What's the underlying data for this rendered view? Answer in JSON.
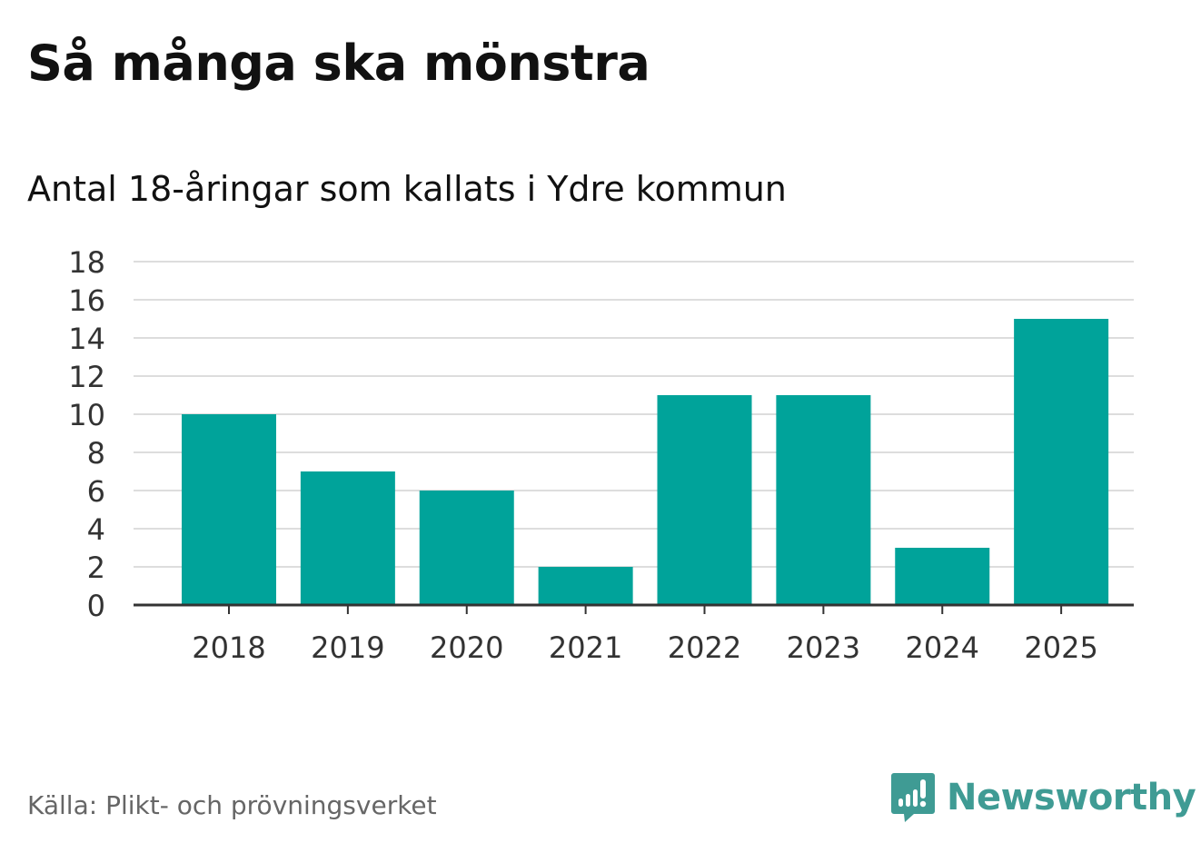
{
  "header": {
    "title": "Så många ska mönstra",
    "subtitle": "Antal 18-åringar som kallats i Ydre kommun"
  },
  "footer": {
    "source": "Källa: Plikt- och prövningsverket",
    "brand": "Newsworthy",
    "brand_icon": "newsworthy-logo-icon"
  },
  "colors": {
    "bar": "#00a39a",
    "grid": "#dddddd",
    "axis": "#333333",
    "brand": "#3f9b94"
  },
  "chart_data": {
    "type": "bar",
    "title": "Så många ska mönstra",
    "subtitle": "Antal 18-åringar som kallats i Ydre kommun",
    "categories": [
      "2018",
      "2019",
      "2020",
      "2021",
      "2022",
      "2023",
      "2024",
      "2025"
    ],
    "values": [
      10,
      7,
      6,
      2,
      11,
      11,
      3,
      15
    ],
    "xlabel": "",
    "ylabel": "",
    "ylim": [
      0,
      18
    ],
    "yticks": [
      0,
      2,
      4,
      6,
      8,
      10,
      12,
      14,
      16,
      18
    ],
    "grid": true,
    "legend": "none"
  }
}
